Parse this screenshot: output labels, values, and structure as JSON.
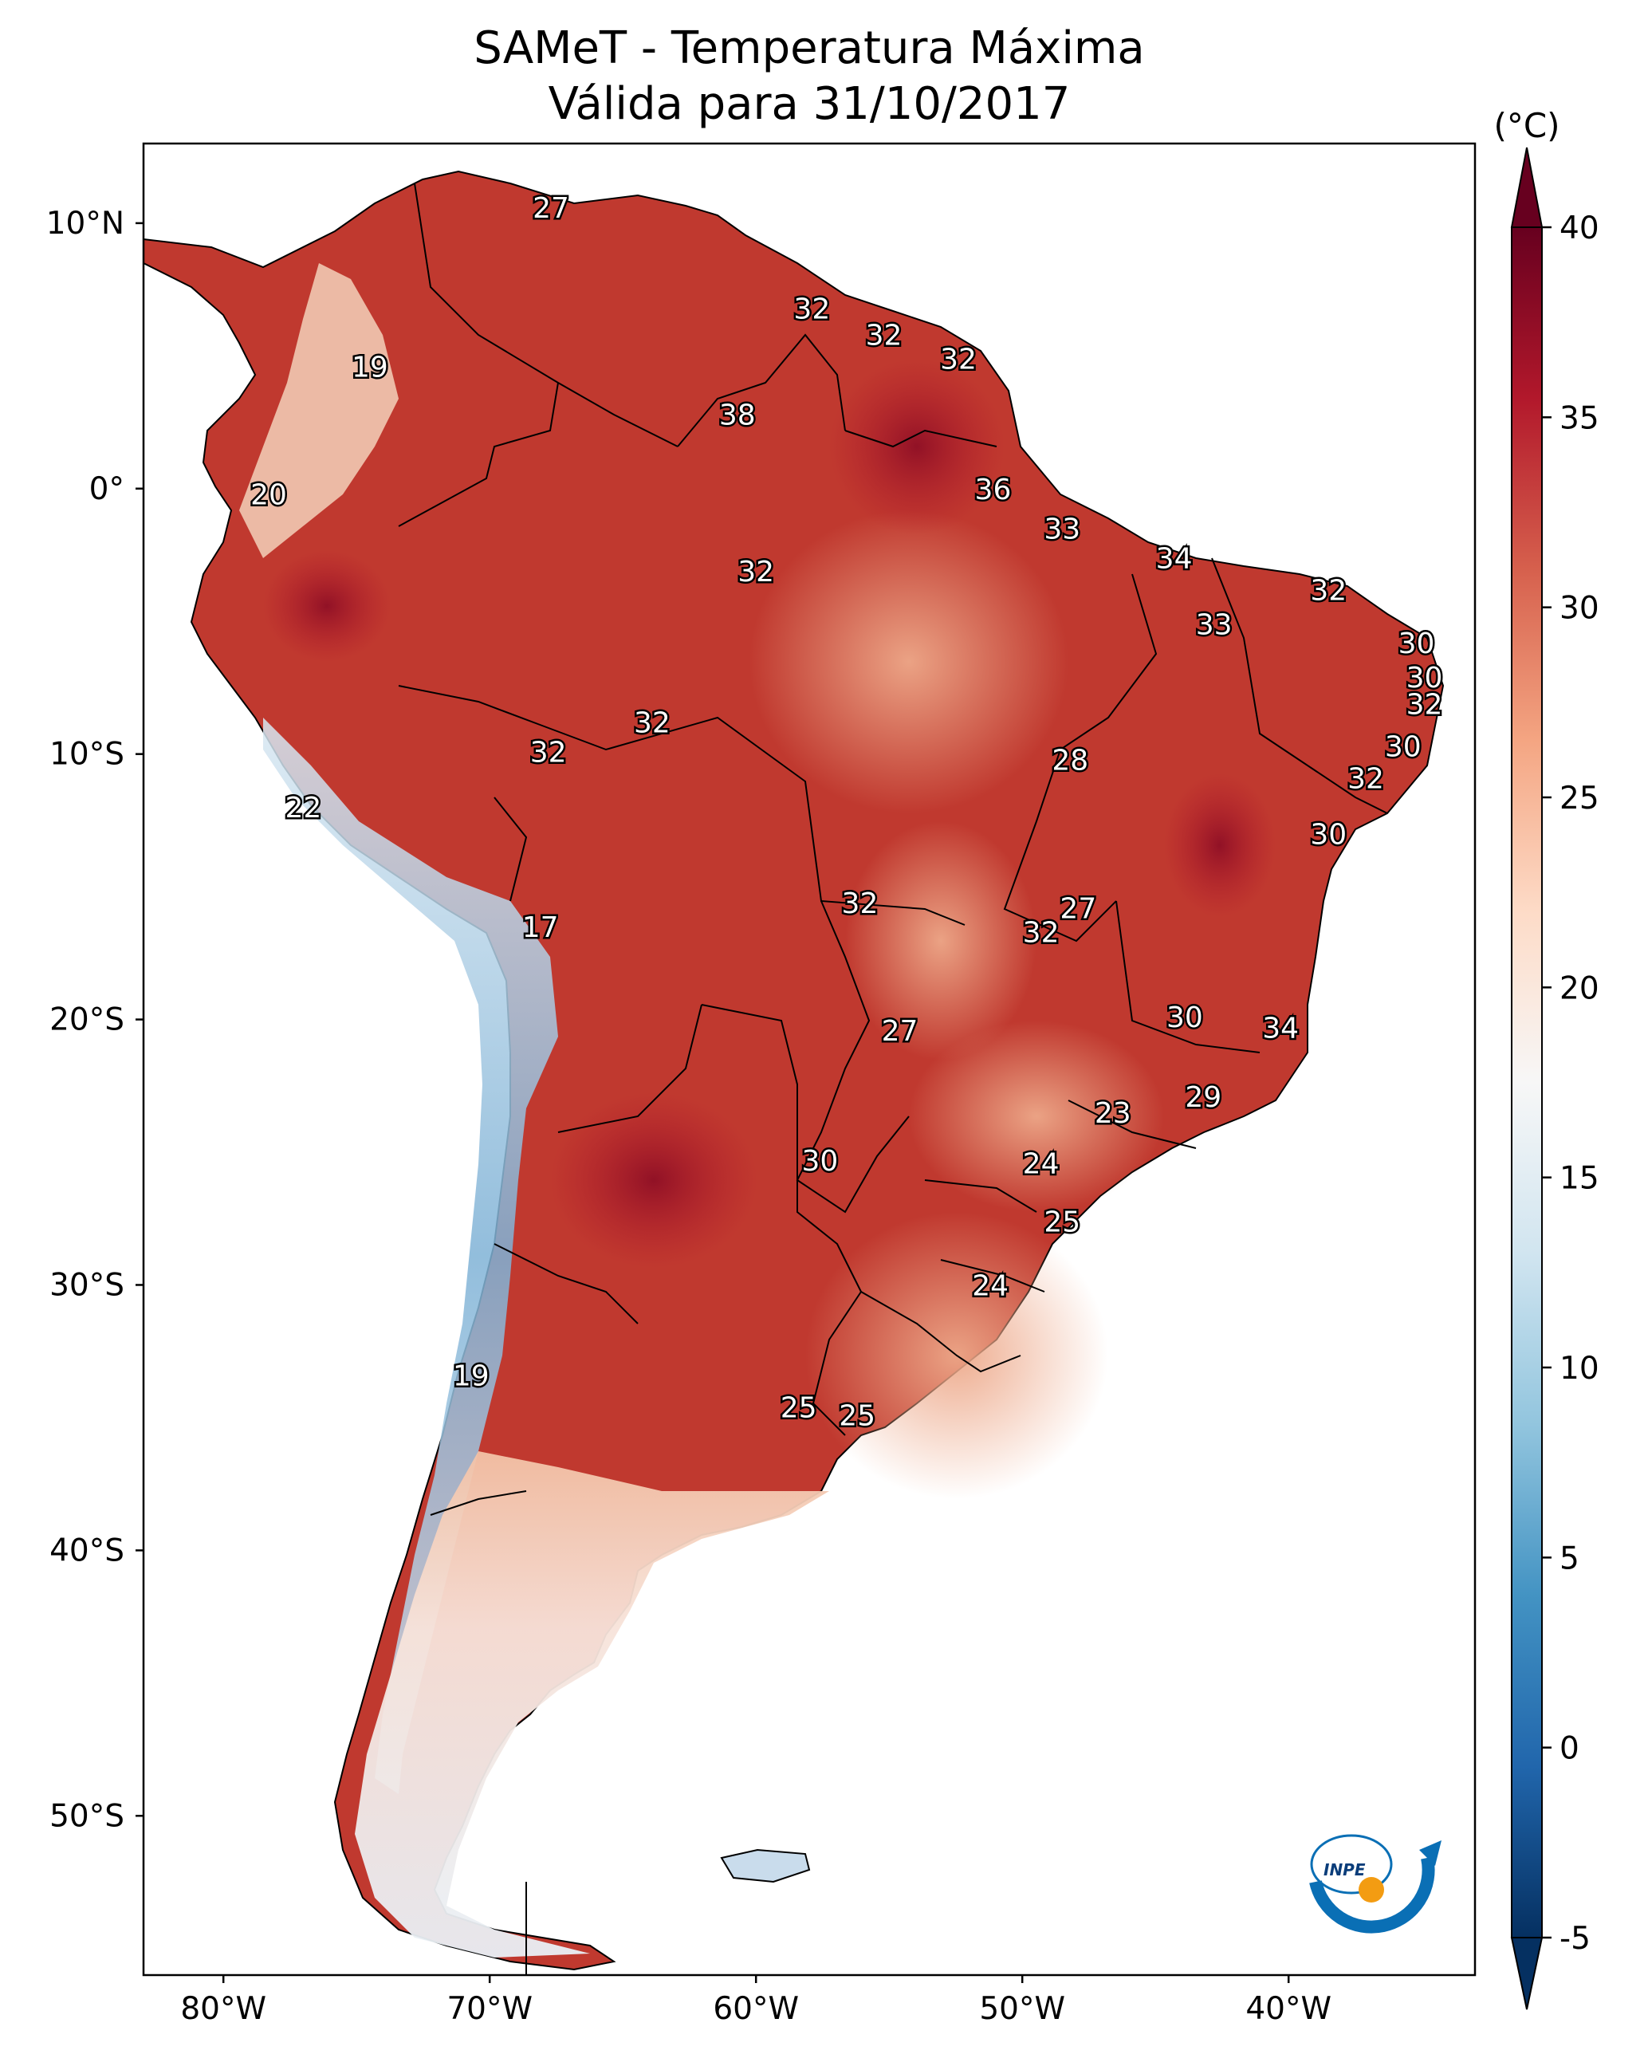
{
  "title": {
    "line1": "SAMeT - Temperatura Máxima",
    "line2": "Válida para 31/10/2017"
  },
  "map": {
    "lon_range": [
      -83,
      -33
    ],
    "lat_range": [
      -56,
      13
    ],
    "lat_ticks": [
      {
        "value": 10,
        "label": "10°N"
      },
      {
        "value": 0,
        "label": "0°"
      },
      {
        "value": -10,
        "label": "10°S"
      },
      {
        "value": -20,
        "label": "20°S"
      },
      {
        "value": -30,
        "label": "30°S"
      },
      {
        "value": -40,
        "label": "40°S"
      },
      {
        "value": -50,
        "label": "50°S"
      }
    ],
    "lon_ticks": [
      {
        "value": -80,
        "label": "80°W"
      },
      {
        "value": -70,
        "label": "70°W"
      },
      {
        "value": -60,
        "label": "60°W"
      },
      {
        "value": -50,
        "label": "50°W"
      },
      {
        "value": -40,
        "label": "40°W"
      }
    ],
    "point_labels": [
      {
        "lon": -67.7,
        "lat": 10.6,
        "text": "27"
      },
      {
        "lon": -74.5,
        "lat": 4.6,
        "text": "19"
      },
      {
        "lon": -78.3,
        "lat": -0.2,
        "text": "20"
      },
      {
        "lon": -57.9,
        "lat": 6.8,
        "text": "32"
      },
      {
        "lon": -55.2,
        "lat": 5.8,
        "text": "32"
      },
      {
        "lon": -52.4,
        "lat": 4.9,
        "text": "32"
      },
      {
        "lon": -60.7,
        "lat": 2.8,
        "text": "38"
      },
      {
        "lon": -51.1,
        "lat": 0.0,
        "text": "36"
      },
      {
        "lon": -48.5,
        "lat": -1.5,
        "text": "33"
      },
      {
        "lon": -44.3,
        "lat": -2.6,
        "text": "34"
      },
      {
        "lon": -60.0,
        "lat": -3.1,
        "text": "32"
      },
      {
        "lon": -38.5,
        "lat": -3.8,
        "text": "32"
      },
      {
        "lon": -42.8,
        "lat": -5.1,
        "text": "33"
      },
      {
        "lon": -35.2,
        "lat": -5.8,
        "text": "30"
      },
      {
        "lon": -34.9,
        "lat": -7.1,
        "text": "30"
      },
      {
        "lon": -34.9,
        "lat": -8.1,
        "text": "32"
      },
      {
        "lon": -35.7,
        "lat": -9.7,
        "text": "30"
      },
      {
        "lon": -37.1,
        "lat": -10.9,
        "text": "32"
      },
      {
        "lon": -38.5,
        "lat": -13.0,
        "text": "30"
      },
      {
        "lon": -63.9,
        "lat": -8.8,
        "text": "32"
      },
      {
        "lon": -67.8,
        "lat": -9.9,
        "text": "32"
      },
      {
        "lon": -48.2,
        "lat": -10.2,
        "text": "28"
      },
      {
        "lon": -77.0,
        "lat": -12.0,
        "text": "22"
      },
      {
        "lon": -56.1,
        "lat": -15.6,
        "text": "32"
      },
      {
        "lon": -47.9,
        "lat": -15.8,
        "text": "27"
      },
      {
        "lon": -49.3,
        "lat": -16.7,
        "text": "32"
      },
      {
        "lon": -68.1,
        "lat": -16.5,
        "text": "17"
      },
      {
        "lon": -54.6,
        "lat": -20.4,
        "text": "27"
      },
      {
        "lon": -43.9,
        "lat": -19.9,
        "text": "30"
      },
      {
        "lon": -40.3,
        "lat": -20.3,
        "text": "34"
      },
      {
        "lon": -43.2,
        "lat": -22.9,
        "text": "29"
      },
      {
        "lon": -46.6,
        "lat": -23.5,
        "text": "23"
      },
      {
        "lon": -57.6,
        "lat": -25.3,
        "text": "30"
      },
      {
        "lon": -49.3,
        "lat": -25.4,
        "text": "24"
      },
      {
        "lon": -48.5,
        "lat": -27.6,
        "text": "25"
      },
      {
        "lon": -51.2,
        "lat": -30.0,
        "text": "24"
      },
      {
        "lon": -70.7,
        "lat": -33.4,
        "text": "19"
      },
      {
        "lon": -58.4,
        "lat": -34.6,
        "text": "25"
      },
      {
        "lon": -56.2,
        "lat": -34.9,
        "text": "25"
      }
    ],
    "logo_text": "INPE"
  },
  "colorbar": {
    "unit": "(°C)",
    "min": -5,
    "max": 40,
    "ticks": [
      {
        "value": 40,
        "label": "40"
      },
      {
        "value": 35,
        "label": "35"
      },
      {
        "value": 30,
        "label": "30"
      },
      {
        "value": 25,
        "label": "25"
      },
      {
        "value": 20,
        "label": "20"
      },
      {
        "value": 15,
        "label": "15"
      },
      {
        "value": 10,
        "label": "10"
      },
      {
        "value": 5,
        "label": "5"
      },
      {
        "value": 0,
        "label": "0"
      },
      {
        "value": -5,
        "label": "-5"
      }
    ],
    "colors": [
      "#053061",
      "#2166ac",
      "#4393c3",
      "#92c5de",
      "#d1e5f0",
      "#f7f7f7",
      "#fddbc7",
      "#f4a582",
      "#d6604d",
      "#b2182b",
      "#67001f"
    ]
  }
}
